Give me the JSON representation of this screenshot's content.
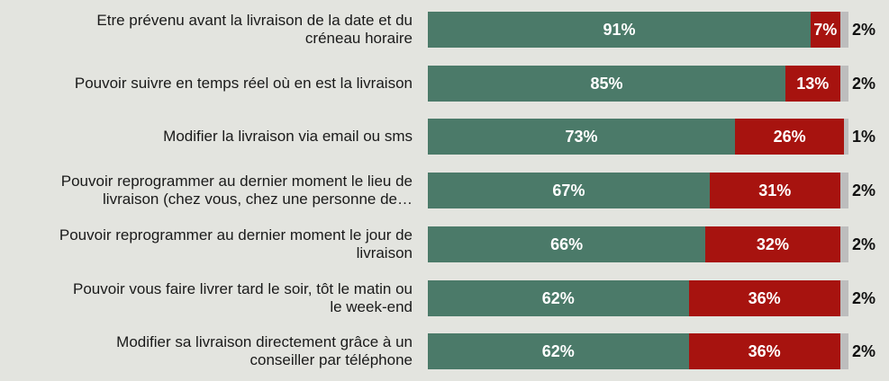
{
  "chart_data": {
    "type": "bar",
    "orientation": "horizontal",
    "stacked": true,
    "categories": [
      "Etre prévenu avant la livraison de la date et du créneau horaire",
      "Pouvoir suivre en temps réel où en est la livraison",
      "Modifier la livraison via email ou sms",
      "Pouvoir reprogrammer au dernier moment le lieu de livraison (chez vous, chez une personne de…",
      "Pouvoir reprogrammer au dernier moment le jour de livraison",
      "Pouvoir vous faire livrer tard le soir, tôt le matin ou le week-end",
      "Modifier sa livraison directement grâce à un conseiller par téléphone"
    ],
    "series": [
      {
        "values": [
          91,
          85,
          73,
          67,
          66,
          62,
          62
        ],
        "labels": [
          "91%",
          "85%",
          "73%",
          "67%",
          "66%",
          "62%",
          "62%"
        ],
        "color": "#4b7a69"
      },
      {
        "values": [
          7,
          13,
          26,
          31,
          32,
          36,
          36
        ],
        "labels": [
          "7%",
          "13%",
          "26%",
          "31%",
          "32%",
          "36%",
          "36%"
        ],
        "color": "#a7130f"
      },
      {
        "values": [
          2,
          2,
          1,
          2,
          2,
          2,
          2
        ],
        "labels": [
          "2%",
          "2%",
          "1%",
          "2%",
          "2%",
          "2%",
          "2%"
        ],
        "color": "#bdbdbd"
      }
    ],
    "xlim": [
      0,
      100
    ],
    "grid": false,
    "legend": "none"
  }
}
